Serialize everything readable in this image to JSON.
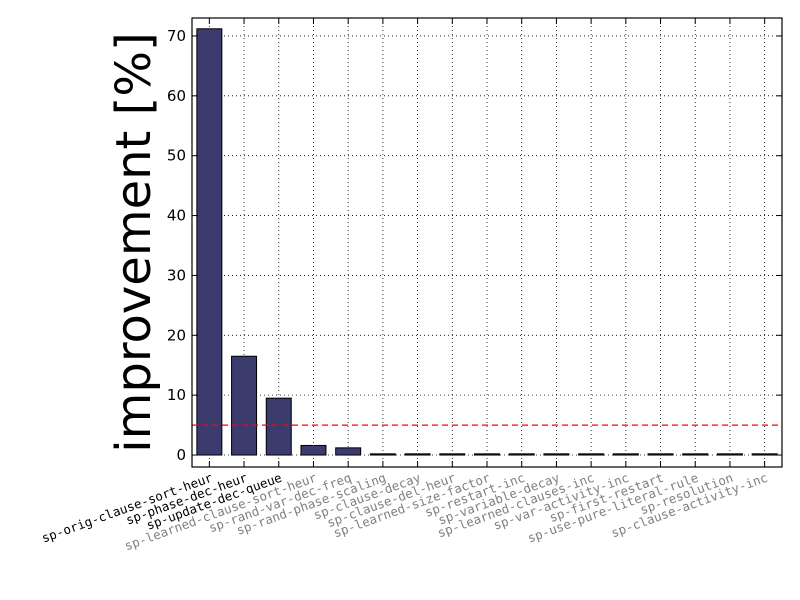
{
  "chart_data": {
    "type": "bar",
    "ylabel": "improvement [%]",
    "xlabel": "",
    "ylim": [
      -2,
      73
    ],
    "yticks": [
      0,
      10,
      20,
      30,
      40,
      50,
      60,
      70
    ],
    "grid": true,
    "threshold": 5,
    "categories": [
      "sp-orig-clause-sort-heur",
      "sp-phase-dec-heur",
      "sp-update-dec-queue",
      "sp-learned-clause-sort-heur",
      "sp-rand-var-dec-freq",
      "sp-rand-phase-scaling",
      "sp-clause-decay",
      "sp-clause-del-heur",
      "sp-learned-size-factor",
      "sp-restart-inc",
      "sp-variable-decay",
      "sp-learned-clauses-inc",
      "sp-var-activity-inc",
      "sp-first-restart",
      "sp-use-pure-literal-rule",
      "sp-resolution",
      "sp-clause-activity-inc"
    ],
    "values": [
      71.2,
      16.5,
      9.5,
      1.6,
      1.2,
      0.15,
      0.15,
      0.15,
      0.12,
      0.05,
      0.05,
      0.05,
      0.05,
      0.05,
      0.05,
      0.05,
      0.05
    ],
    "label_colors": {
      "highlighted": "#000000",
      "normal": "#808080"
    },
    "highlighted_count": 3,
    "colors": {
      "bar_fill": "#3b3b6d",
      "bar_edge": "#000000",
      "threshold_line": "#ff0000",
      "grid": "#000000"
    }
  }
}
